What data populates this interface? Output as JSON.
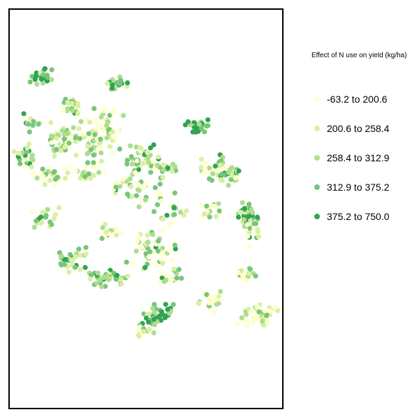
{
  "legend": {
    "title": "Effect of N use on yield (kg/ha)",
    "classes": [
      {
        "label": "-63.2 to 200.6",
        "color": "#ffffcc"
      },
      {
        "label": "200.6 to 258.4",
        "color": "#d9f0a3"
      },
      {
        "label": "258.4 to 312.9",
        "color": "#addd8e"
      },
      {
        "label": "312.9 to 375.2",
        "color": "#78c679"
      },
      {
        "label": "375.2 to 750.0",
        "color": "#31a354"
      }
    ]
  }
}
